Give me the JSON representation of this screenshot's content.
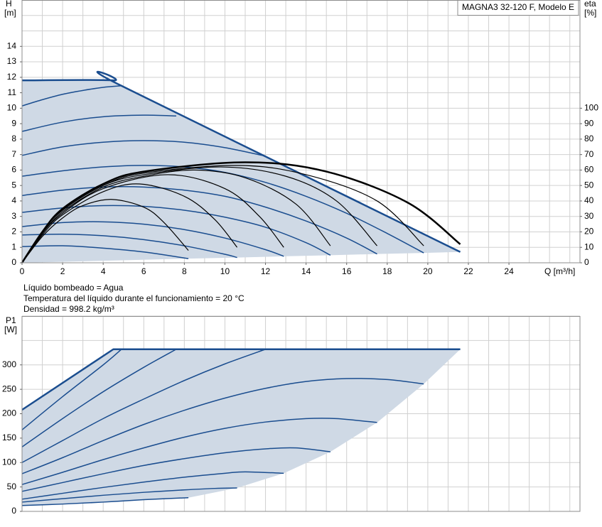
{
  "chart_data": [
    {
      "type": "line",
      "title": "MAGNA3 32-120 F, Modelo E",
      "ylabel": "H",
      "yunit": "[m]",
      "y2label": "eta",
      "y2unit": "[%]",
      "xlabel": "Q [m³/h]",
      "notes": [
        "Líquido bombeado = Agua",
        "Temperatura del líquido durante el funcionamiento = 20 °C",
        "Densidad = 998.2 kg/m³"
      ],
      "xlim": [
        0,
        27.5
      ],
      "xticks": [
        0,
        2,
        4,
        6,
        8,
        10,
        12,
        14,
        16,
        18,
        20,
        22,
        24
      ],
      "ylim": [
        0,
        17
      ],
      "yticks": [
        0,
        1,
        2,
        3,
        4,
        5,
        6,
        7,
        8,
        9,
        10,
        11,
        12,
        13,
        14
      ],
      "y2lim": [
        0,
        170
      ],
      "y2ticks": [
        0,
        10,
        20,
        30,
        40,
        50,
        60,
        70,
        80,
        90,
        100
      ],
      "grid_step_x": 1,
      "grid_step_y": 1,
      "area": {
        "color": "#cfd9e5",
        "x": [
          0,
          4.5,
          4.9,
          21.6,
          19.8,
          17.5,
          15.2,
          12.9,
          10.6,
          8.2,
          0
        ],
        "values": [
          11.8,
          11.8,
          11.45,
          0.7,
          0.64,
          0.57,
          0.49,
          0.42,
          0.34,
          0.27,
          0
        ]
      },
      "series": [
        {
          "color": "#1a4d8f",
          "width": 2.5,
          "x": [
            0,
            4.5,
            4.9,
            21.6
          ],
          "values": [
            11.8,
            11.8,
            11.45,
            0.7
          ]
        },
        {
          "color": "#1a4d8f",
          "width": 1.5,
          "x": [
            0,
            1,
            2,
            3,
            4,
            4.9
          ],
          "values": [
            10.15,
            10.55,
            10.9,
            11.15,
            11.35,
            11.45
          ]
        },
        {
          "color": "#1a4d8f",
          "width": 1.5,
          "x": [
            0,
            2,
            4,
            6,
            7.6
          ],
          "values": [
            8.5,
            9.1,
            9.45,
            9.55,
            9.5
          ]
        },
        {
          "color": "#1a4d8f",
          "width": 1.5,
          "x": [
            0,
            2,
            4,
            6,
            8,
            10,
            12
          ],
          "values": [
            6.95,
            7.5,
            7.8,
            7.9,
            7.8,
            7.45,
            6.9
          ]
        },
        {
          "color": "#1a4d8f",
          "width": 1.5,
          "x": [
            0,
            2,
            4,
            6,
            8,
            10,
            12,
            14,
            16,
            18,
            19.8
          ],
          "values": [
            5.6,
            5.95,
            6.2,
            6.3,
            6.2,
            5.85,
            5.2,
            4.3,
            3.2,
            1.9,
            0.64
          ]
        },
        {
          "color": "#1a4d8f",
          "width": 1.5,
          "x": [
            0,
            2,
            4,
            6,
            8,
            10,
            12,
            14,
            16,
            17.5
          ],
          "values": [
            4.35,
            4.7,
            4.9,
            4.9,
            4.7,
            4.3,
            3.6,
            2.7,
            1.6,
            0.57
          ]
        },
        {
          "color": "#1a4d8f",
          "width": 1.5,
          "x": [
            0,
            2,
            4,
            6,
            8,
            10,
            12,
            14,
            15.2
          ],
          "values": [
            3.26,
            3.55,
            3.7,
            3.65,
            3.4,
            2.95,
            2.3,
            1.3,
            0.49
          ]
        },
        {
          "color": "#1a4d8f",
          "width": 1.5,
          "x": [
            0,
            2,
            4,
            6,
            8,
            10,
            12,
            12.9
          ],
          "values": [
            2.34,
            2.6,
            2.65,
            2.5,
            2.15,
            1.6,
            0.85,
            0.42
          ]
        },
        {
          "color": "#1a4d8f",
          "width": 1.5,
          "x": [
            0,
            2,
            4,
            6,
            8,
            10,
            10.6
          ],
          "values": [
            1.8,
            1.85,
            1.75,
            1.5,
            1.1,
            0.55,
            0.34
          ]
        },
        {
          "color": "#1a4d8f",
          "width": 1.5,
          "x": [
            0,
            2,
            4,
            6,
            8.2
          ],
          "values": [
            1.05,
            1.1,
            0.95,
            0.7,
            0.27
          ]
        },
        {
          "color": "#000000",
          "width": 1.2,
          "axis": "y2",
          "x": [
            0,
            1,
            2,
            3,
            4.4,
            6,
            7,
            8.2
          ],
          "values": [
            0,
            17,
            29,
            37,
            41,
            36,
            26,
            8
          ]
        },
        {
          "color": "#000000",
          "width": 1.2,
          "axis": "y2",
          "x": [
            0,
            1,
            2,
            4,
            5.8,
            8,
            9.5,
            10.6
          ],
          "values": [
            0,
            18,
            31,
            46,
            51,
            43,
            28,
            10
          ]
        },
        {
          "color": "#000000",
          "width": 1.2,
          "axis": "y2",
          "x": [
            0,
            1,
            2,
            4,
            7.2,
            10,
            11.7,
            12.9
          ],
          "values": [
            0,
            19,
            32,
            48,
            57,
            48,
            30,
            10
          ]
        },
        {
          "color": "#000000",
          "width": 1.2,
          "axis": "y2",
          "x": [
            0,
            1,
            2,
            4,
            6,
            8.5,
            11,
            13.5,
            15.2
          ],
          "values": [
            0,
            19,
            33,
            49,
            56,
            60,
            55,
            38,
            11
          ]
        },
        {
          "color": "#000000",
          "width": 1.2,
          "axis": "y2",
          "x": [
            0,
            1,
            2,
            4,
            6,
            9.8,
            13,
            15.5,
            17.5
          ],
          "values": [
            0,
            20,
            34,
            50,
            57,
            62,
            56,
            40,
            11
          ]
        },
        {
          "color": "#000000",
          "width": 1.2,
          "axis": "y2",
          "x": [
            0,
            1,
            2,
            4,
            6,
            10.6,
            14,
            17.5,
            19.8
          ],
          "values": [
            0,
            20,
            34,
            50,
            58,
            63,
            57,
            40,
            11
          ]
        },
        {
          "color": "#000000",
          "width": 2.5,
          "axis": "y2",
          "x": [
            0,
            1,
            2,
            4,
            6,
            11,
            15,
            19,
            21.6
          ],
          "values": [
            0,
            20,
            35,
            51,
            59,
            65,
            59,
            39,
            12
          ]
        }
      ]
    },
    {
      "type": "line",
      "ylabel": "P1",
      "yunit": "[W]",
      "xlim": [
        0,
        27.5
      ],
      "ylim": [
        0,
        400
      ],
      "yticks": [
        0,
        50,
        100,
        150,
        200,
        250,
        300
      ],
      "grid_step_x": 1,
      "grid_step_y": 50,
      "area": {
        "color": "#cfd9e5",
        "x": [
          0,
          4.5,
          21.6,
          19.8,
          17.5,
          15.2,
          12.9,
          10.6,
          8.2,
          6,
          4,
          2,
          0
        ],
        "values": [
          208,
          332,
          332,
          261,
          182,
          122,
          78,
          48,
          28,
          24,
          19,
          15,
          12
        ]
      },
      "series": [
        {
          "color": "#1a4d8f",
          "width": 2.5,
          "x": [
            0,
            4.5,
            21.6
          ],
          "values": [
            208,
            332,
            332
          ]
        },
        {
          "color": "#1a4d8f",
          "width": 1.5,
          "x": [
            0,
            2,
            4,
            4.9
          ],
          "values": [
            167,
            235,
            300,
            332
          ]
        },
        {
          "color": "#1a4d8f",
          "width": 1.5,
          "x": [
            0,
            2,
            4,
            6,
            7.6
          ],
          "values": [
            132,
            190,
            245,
            295,
            332
          ]
        },
        {
          "color": "#1a4d8f",
          "width": 1.5,
          "x": [
            0,
            2,
            4,
            6,
            8,
            10,
            12
          ],
          "values": [
            100,
            145,
            190,
            230,
            268,
            302,
            332
          ]
        },
        {
          "color": "#1a4d8f",
          "width": 1.5,
          "x": [
            0,
            2,
            4,
            6,
            8,
            10,
            12,
            14,
            16,
            18,
            19.8
          ],
          "values": [
            77,
            110,
            145,
            178,
            207,
            232,
            252,
            266,
            272,
            270,
            261
          ]
        },
        {
          "color": "#1a4d8f",
          "width": 1.5,
          "x": [
            0,
            2,
            4,
            6,
            8,
            10,
            12,
            14,
            15.5,
            17.5
          ],
          "values": [
            55,
            80,
            106,
            130,
            152,
            170,
            183,
            190,
            190,
            182
          ]
        },
        {
          "color": "#1a4d8f",
          "width": 1.5,
          "x": [
            0,
            2,
            4,
            6,
            8,
            10,
            12,
            13.5,
            15.2
          ],
          "values": [
            41,
            59,
            77,
            94,
            108,
            120,
            128,
            130,
            122
          ]
        },
        {
          "color": "#1a4d8f",
          "width": 1.5,
          "x": [
            0,
            2,
            4,
            6,
            8,
            10,
            11,
            12.9
          ],
          "values": [
            25,
            37,
            49,
            60,
            70,
            78,
            81,
            78
          ]
        },
        {
          "color": "#1a4d8f",
          "width": 1.5,
          "x": [
            0,
            2,
            4,
            6,
            8,
            9.5,
            10.6
          ],
          "values": [
            19,
            26,
            33,
            39,
            44,
            47,
            48
          ]
        },
        {
          "color": "#1a4d8f",
          "width": 1.5,
          "x": [
            0,
            2,
            4,
            6,
            8.2
          ],
          "values": [
            12,
            15,
            19,
            24,
            28
          ]
        }
      ]
    }
  ]
}
